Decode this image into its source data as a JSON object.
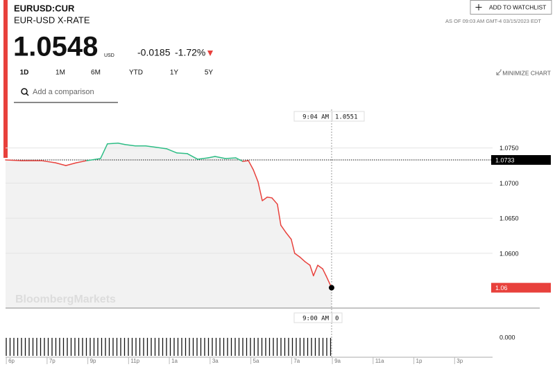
{
  "header": {
    "symbol": "EURUSD:CUR",
    "name": "EUR-USD X-RATE",
    "price": "1.0548",
    "currency": "USD",
    "change": "-0.0185",
    "change_pct": "-1.72%",
    "timestamp": "AS OF 09:03 AM GMT-4 03/15/2023 EDT",
    "watchlist_button": "ADD TO WATCHLIST",
    "ranges": [
      "1D",
      "1M",
      "6M",
      "YTD",
      "1Y",
      "5Y"
    ],
    "minimize": "MINIMIZE CHART",
    "comparison_placeholder": "Add a comparison"
  },
  "chart_data": {
    "type": "line",
    "watermark": "BloombergMarkets",
    "x": [
      16.86,
      17.61,
      18.63,
      19.31,
      19.82,
      20.33,
      20.84,
      21.52,
      21.86,
      22.38,
      22.72,
      23.23,
      23.74,
      24.25,
      24.76,
      25.27,
      25.78,
      26.29,
      26.8,
      27.14,
      27.65,
      28.16,
      28.5,
      28.78,
      29.02,
      29.25,
      29.46,
      29.7,
      29.93,
      30.2,
      30.37,
      30.61,
      30.88,
      31.05,
      31.29,
      31.56,
      31.8,
      31.97,
      32.18,
      32.42,
      32.59,
      32.86
    ],
    "series": [
      {
        "name": "EURUSD:CUR",
        "up_color": "#2dbd85",
        "down_color": "#e8413c",
        "fill_color": "#f2f2f2",
        "values": [
          1.0733,
          1.0732,
          1.0732,
          1.0729,
          1.0725,
          1.0729,
          1.0732,
          1.0735,
          1.0756,
          1.0757,
          1.0755,
          1.0753,
          1.0753,
          1.0751,
          1.0749,
          1.0743,
          1.0742,
          1.0734,
          1.0736,
          1.0738,
          1.0735,
          1.0736,
          1.0731,
          1.0732,
          1.0719,
          1.0702,
          1.0675,
          1.068,
          1.0679,
          1.067,
          1.064,
          1.063,
          1.062,
          1.06,
          1.0595,
          1.0588,
          1.0583,
          1.0568,
          1.0583,
          1.0578,
          1.0568,
          1.0551
        ]
      }
    ],
    "previous_close": 1.0733,
    "last": {
      "value": 1.0551,
      "label": "1.06"
    },
    "crosshair": {
      "time": "9:04 AM",
      "value": "1.0551"
    },
    "volume": {
      "time": "9:00 AM",
      "value": "0",
      "yticks": [
        {
          "value": 0,
          "label": "0.000"
        }
      ]
    },
    "xlim": [
      16.86,
      40.76
    ],
    "xticks": [
      {
        "value": 17,
        "label": "6p"
      },
      {
        "value": 19,
        "label": "7p"
      },
      {
        "value": 21,
        "label": "9p"
      },
      {
        "value": 23,
        "label": "11p"
      },
      {
        "value": 25,
        "label": "1a"
      },
      {
        "value": 27,
        "label": "3a"
      },
      {
        "value": 29,
        "label": "5a"
      },
      {
        "value": 31,
        "label": "7a"
      },
      {
        "value": 33,
        "label": "9a"
      },
      {
        "value": 35,
        "label": "11a"
      },
      {
        "value": 37,
        "label": "1p"
      },
      {
        "value": 39,
        "label": "3p"
      }
    ],
    "ylim": [
      1.0522,
      1.0808
    ],
    "yticks": [
      {
        "value": 1.075,
        "label": "1.0750"
      },
      {
        "value": 1.07,
        "label": "1.0700"
      },
      {
        "value": 1.065,
        "label": "1.0650"
      },
      {
        "value": 1.06,
        "label": "1.0600"
      }
    ],
    "grid": true
  }
}
